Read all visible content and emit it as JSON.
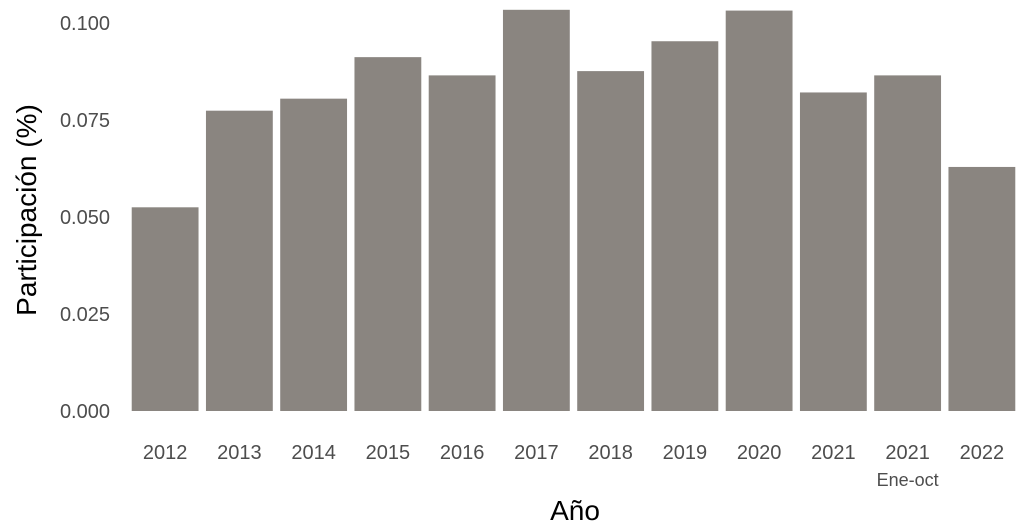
{
  "chart_data": {
    "type": "bar",
    "categories": [
      {
        "label": "2012",
        "sublabel": ""
      },
      {
        "label": "2013",
        "sublabel": ""
      },
      {
        "label": "2014",
        "sublabel": ""
      },
      {
        "label": "2015",
        "sublabel": ""
      },
      {
        "label": "2016",
        "sublabel": ""
      },
      {
        "label": "2017",
        "sublabel": ""
      },
      {
        "label": "2018",
        "sublabel": ""
      },
      {
        "label": "2019",
        "sublabel": ""
      },
      {
        "label": "2020",
        "sublabel": ""
      },
      {
        "label": "2021",
        "sublabel": ""
      },
      {
        "label": "2021",
        "sublabel": "Ene-oct"
      },
      {
        "label": "2022",
        "sublabel": ""
      }
    ],
    "values": [
      0.0525,
      0.0774,
      0.0805,
      0.0912,
      0.0865,
      0.1034,
      0.0876,
      0.0953,
      0.1032,
      0.0821,
      0.0865,
      0.0629
    ],
    "xlabel": "Año",
    "ylabel": "Participación (%)",
    "ylim": [
      0,
      0.103
    ],
    "yticks": [
      "0.000",
      "0.025",
      "0.050",
      "0.075",
      "0.100"
    ],
    "bar_color": "#8a8580",
    "grid": false
  }
}
